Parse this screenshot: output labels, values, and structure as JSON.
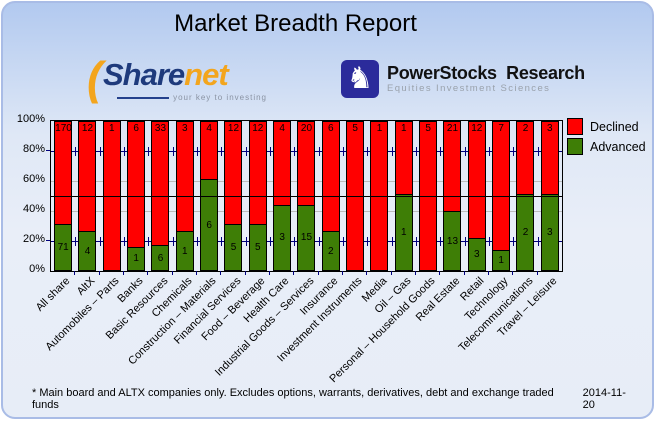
{
  "title": "Market Breadth Report",
  "logos": {
    "sharenet": {
      "arc_glyph": "(",
      "text_share": "Share",
      "text_net": "net",
      "tagline": "your key to investing",
      "color_navy": "#1e3a7c",
      "color_orange": "#f3a51d"
    },
    "powerstocks": {
      "icon": "chess-knight",
      "knight_glyph": "♞",
      "name": "PowerStocks  Research",
      "subtitle": "Equities Investment Sciences",
      "badge_color": "#2b2b9b"
    }
  },
  "chart_data": {
    "type": "bar",
    "stacked": true,
    "normalized": "percent-of-total",
    "title": "",
    "xlabel": "",
    "ylabel": "",
    "grid": true,
    "reference_line_pct": 50,
    "legend_position": "top-right",
    "value_axis": {
      "min": 0,
      "max": 100,
      "ticks": [
        "0%",
        "20%",
        "40%",
        "60%",
        "80%",
        "100%"
      ]
    },
    "categories": [
      "All share",
      "AltX",
      "Automobiles – Parts",
      "Banks",
      "Basic Resources",
      "Chemicals",
      "Construction – Materials",
      "Financial Services",
      "Food – Beverage",
      "Health Care",
      "Industrial Goods – Services",
      "Insurance",
      "Investment Instruments",
      "Media",
      "Oil – Gas",
      "Personal – Household Goods",
      "Real Estate",
      "Retail",
      "Technology",
      "Telecommunications",
      "Travel – Leisure"
    ],
    "series": [
      {
        "name": "Declined",
        "color": "#ff0000",
        "values": [
          170,
          12,
          1,
          6,
          33,
          3,
          4,
          12,
          12,
          4,
          20,
          6,
          5,
          1,
          1,
          5,
          21,
          12,
          7,
          2,
          3
        ]
      },
      {
        "name": "Advanced",
        "color": "#3e7e06",
        "values": [
          71,
          4,
          0,
          1,
          6,
          1,
          6,
          5,
          5,
          3,
          15,
          2,
          0,
          0,
          1,
          0,
          13,
          3,
          1,
          2,
          3
        ]
      }
    ],
    "colors": {
      "grid_gray": "#bcbcbc",
      "grid_navy": "#00007d",
      "reference_line": "#000000"
    }
  },
  "footer": {
    "note": "* Main board and ALTX companies only. Excludes options, warrants, derivatives, debt and exchange traded funds",
    "date": "2014-11-20"
  }
}
